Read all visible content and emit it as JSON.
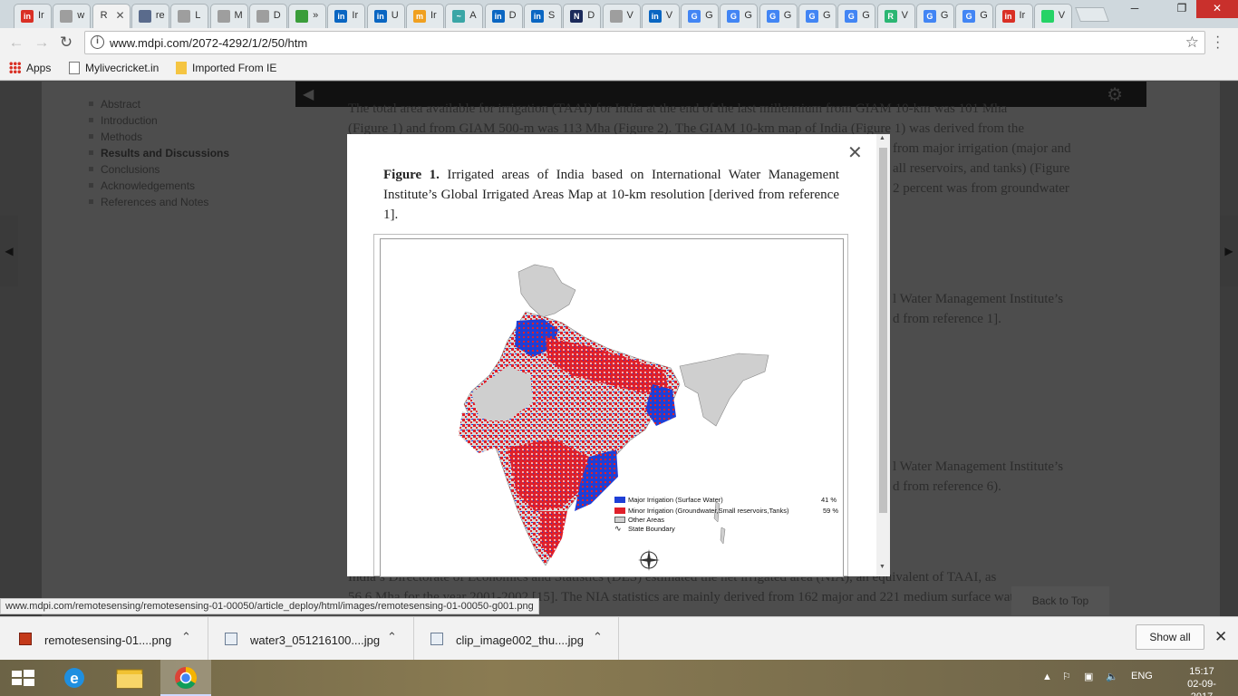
{
  "browser": {
    "tabs": [
      {
        "label": "Ir",
        "favicon": "#d93025",
        "glyph": "in"
      },
      {
        "label": "w",
        "favicon": "#9e9e9e",
        "glyph": ""
      },
      {
        "label": "R",
        "favicon": "",
        "glyph": "",
        "active": true
      },
      {
        "label": "re",
        "favicon": "#5a6b8c",
        "glyph": ""
      },
      {
        "label": "L",
        "favicon": "#9e9e9e",
        "glyph": ""
      },
      {
        "label": "M",
        "favicon": "#9e9e9e",
        "glyph": ""
      },
      {
        "label": "D",
        "favicon": "#9e9e9e",
        "glyph": ""
      },
      {
        "label": "»",
        "favicon": "#3a9d3a",
        "glyph": ""
      },
      {
        "label": "Ir",
        "favicon": "#0a66c2",
        "glyph": "in"
      },
      {
        "label": "U",
        "favicon": "#0a66c2",
        "glyph": "in"
      },
      {
        "label": "Ir",
        "favicon": "#f0a020",
        "glyph": "m"
      },
      {
        "label": "A",
        "favicon": "#3aa6a6",
        "glyph": "~"
      },
      {
        "label": "D",
        "favicon": "#0a66c2",
        "glyph": "in"
      },
      {
        "label": "S",
        "favicon": "#0a66c2",
        "glyph": "in"
      },
      {
        "label": "D",
        "favicon": "#1b2a5b",
        "glyph": "N"
      },
      {
        "label": "V",
        "favicon": "#9e9e9e",
        "glyph": ""
      },
      {
        "label": "V",
        "favicon": "#0a66c2",
        "glyph": "in"
      },
      {
        "label": "G",
        "favicon": "#4285f4",
        "glyph": "G"
      },
      {
        "label": "G",
        "favicon": "#4285f4",
        "glyph": "G"
      },
      {
        "label": "G",
        "favicon": "#4285f4",
        "glyph": "G"
      },
      {
        "label": "G",
        "favicon": "#4285f4",
        "glyph": "G"
      },
      {
        "label": "G",
        "favicon": "#4285f4",
        "glyph": "G"
      },
      {
        "label": "V",
        "favicon": "#2bb673",
        "glyph": "R"
      },
      {
        "label": "G",
        "favicon": "#4285f4",
        "glyph": "G"
      },
      {
        "label": "G",
        "favicon": "#4285f4",
        "glyph": "G"
      },
      {
        "label": "Ir",
        "favicon": "#d93025",
        "glyph": "in"
      },
      {
        "label": "V",
        "favicon": "#25d366",
        "glyph": ""
      }
    ],
    "url": "www.mdpi.com/2072-4292/1/2/50/htm",
    "bookmarks": {
      "apps": "Apps",
      "mylivecricket": "Mylivecricket.in",
      "imported": "Imported From IE"
    }
  },
  "page": {
    "toc": [
      {
        "label": "Abstract",
        "current": false
      },
      {
        "label": "Introduction",
        "current": false
      },
      {
        "label": "Methods",
        "current": false
      },
      {
        "label": "Results and Discussions",
        "current": true
      },
      {
        "label": "Conclusions",
        "current": false
      },
      {
        "label": "Acknowledgements",
        "current": false
      },
      {
        "label": "References and Notes",
        "current": false
      }
    ],
    "article_lines_top": [
      "The total area available for irrigation (TAAI) for India at the end of the last millennium from GIAM 10-km was 101 Mha",
      "(Figure 1) and from GIAM 500-m was 113 Mha (Figure 2). The GIAM 10-km map of India (Figure 1) was derived from the"
    ],
    "article_right_fragments": [
      "from major irrigation (major and",
      "all reservoirs, and tanks) (Figure",
      "2 percent was from groundwater",
      "l Water Management Institute’s",
      "d from reference 1].",
      "l Water Management Institute’s",
      "d from reference 6)."
    ],
    "article_lines_bottom": [
      "India’s Directorate of Economics and Statistics (DES) estimated the net irrigated area (NIA), an equivalent of TAAI, as",
      "56.6 Mha for the year 2001-2002 [15]. The NIA statistics are mainly derived from 162 major and 221 medium surface water"
    ],
    "back_to_top": "Back to Top"
  },
  "modal": {
    "caption_label": "Figure 1.",
    "caption_text": "Irrigated areas of India based on International Water Management Institute’s Global Irrigated Areas Map at 10-km resolution [derived from reference 1].",
    "legend": [
      {
        "label": "Major Irrigation (Surface Water)",
        "percent": "41 %",
        "color": "#1f3fd6"
      },
      {
        "label": "Minor Irrigation (Groundwater,Small reservoirs,Tanks)",
        "percent": "59 %",
        "color": "#e0202a"
      },
      {
        "label": "Other Areas",
        "percent": "",
        "color": "#cfcfcf"
      },
      {
        "label": "State Boundary",
        "percent": "",
        "color": ""
      }
    ]
  },
  "status_url": "www.mdpi.com/remotesensing/remotesensing-01-00050/article_deploy/html/images/remotesensing-01-00050-g001.png",
  "downloads": {
    "items": [
      {
        "name": "remotesensing-01....png",
        "icon": "png-file-icon"
      },
      {
        "name": "water3_051216100....jpg",
        "icon": "image-file-icon"
      },
      {
        "name": "clip_image002_thu....jpg",
        "icon": "image-file-icon"
      }
    ],
    "show_all": "Show all"
  },
  "taskbar": {
    "language": "ENG",
    "time": "15:17",
    "date": "02-09-2017"
  }
}
